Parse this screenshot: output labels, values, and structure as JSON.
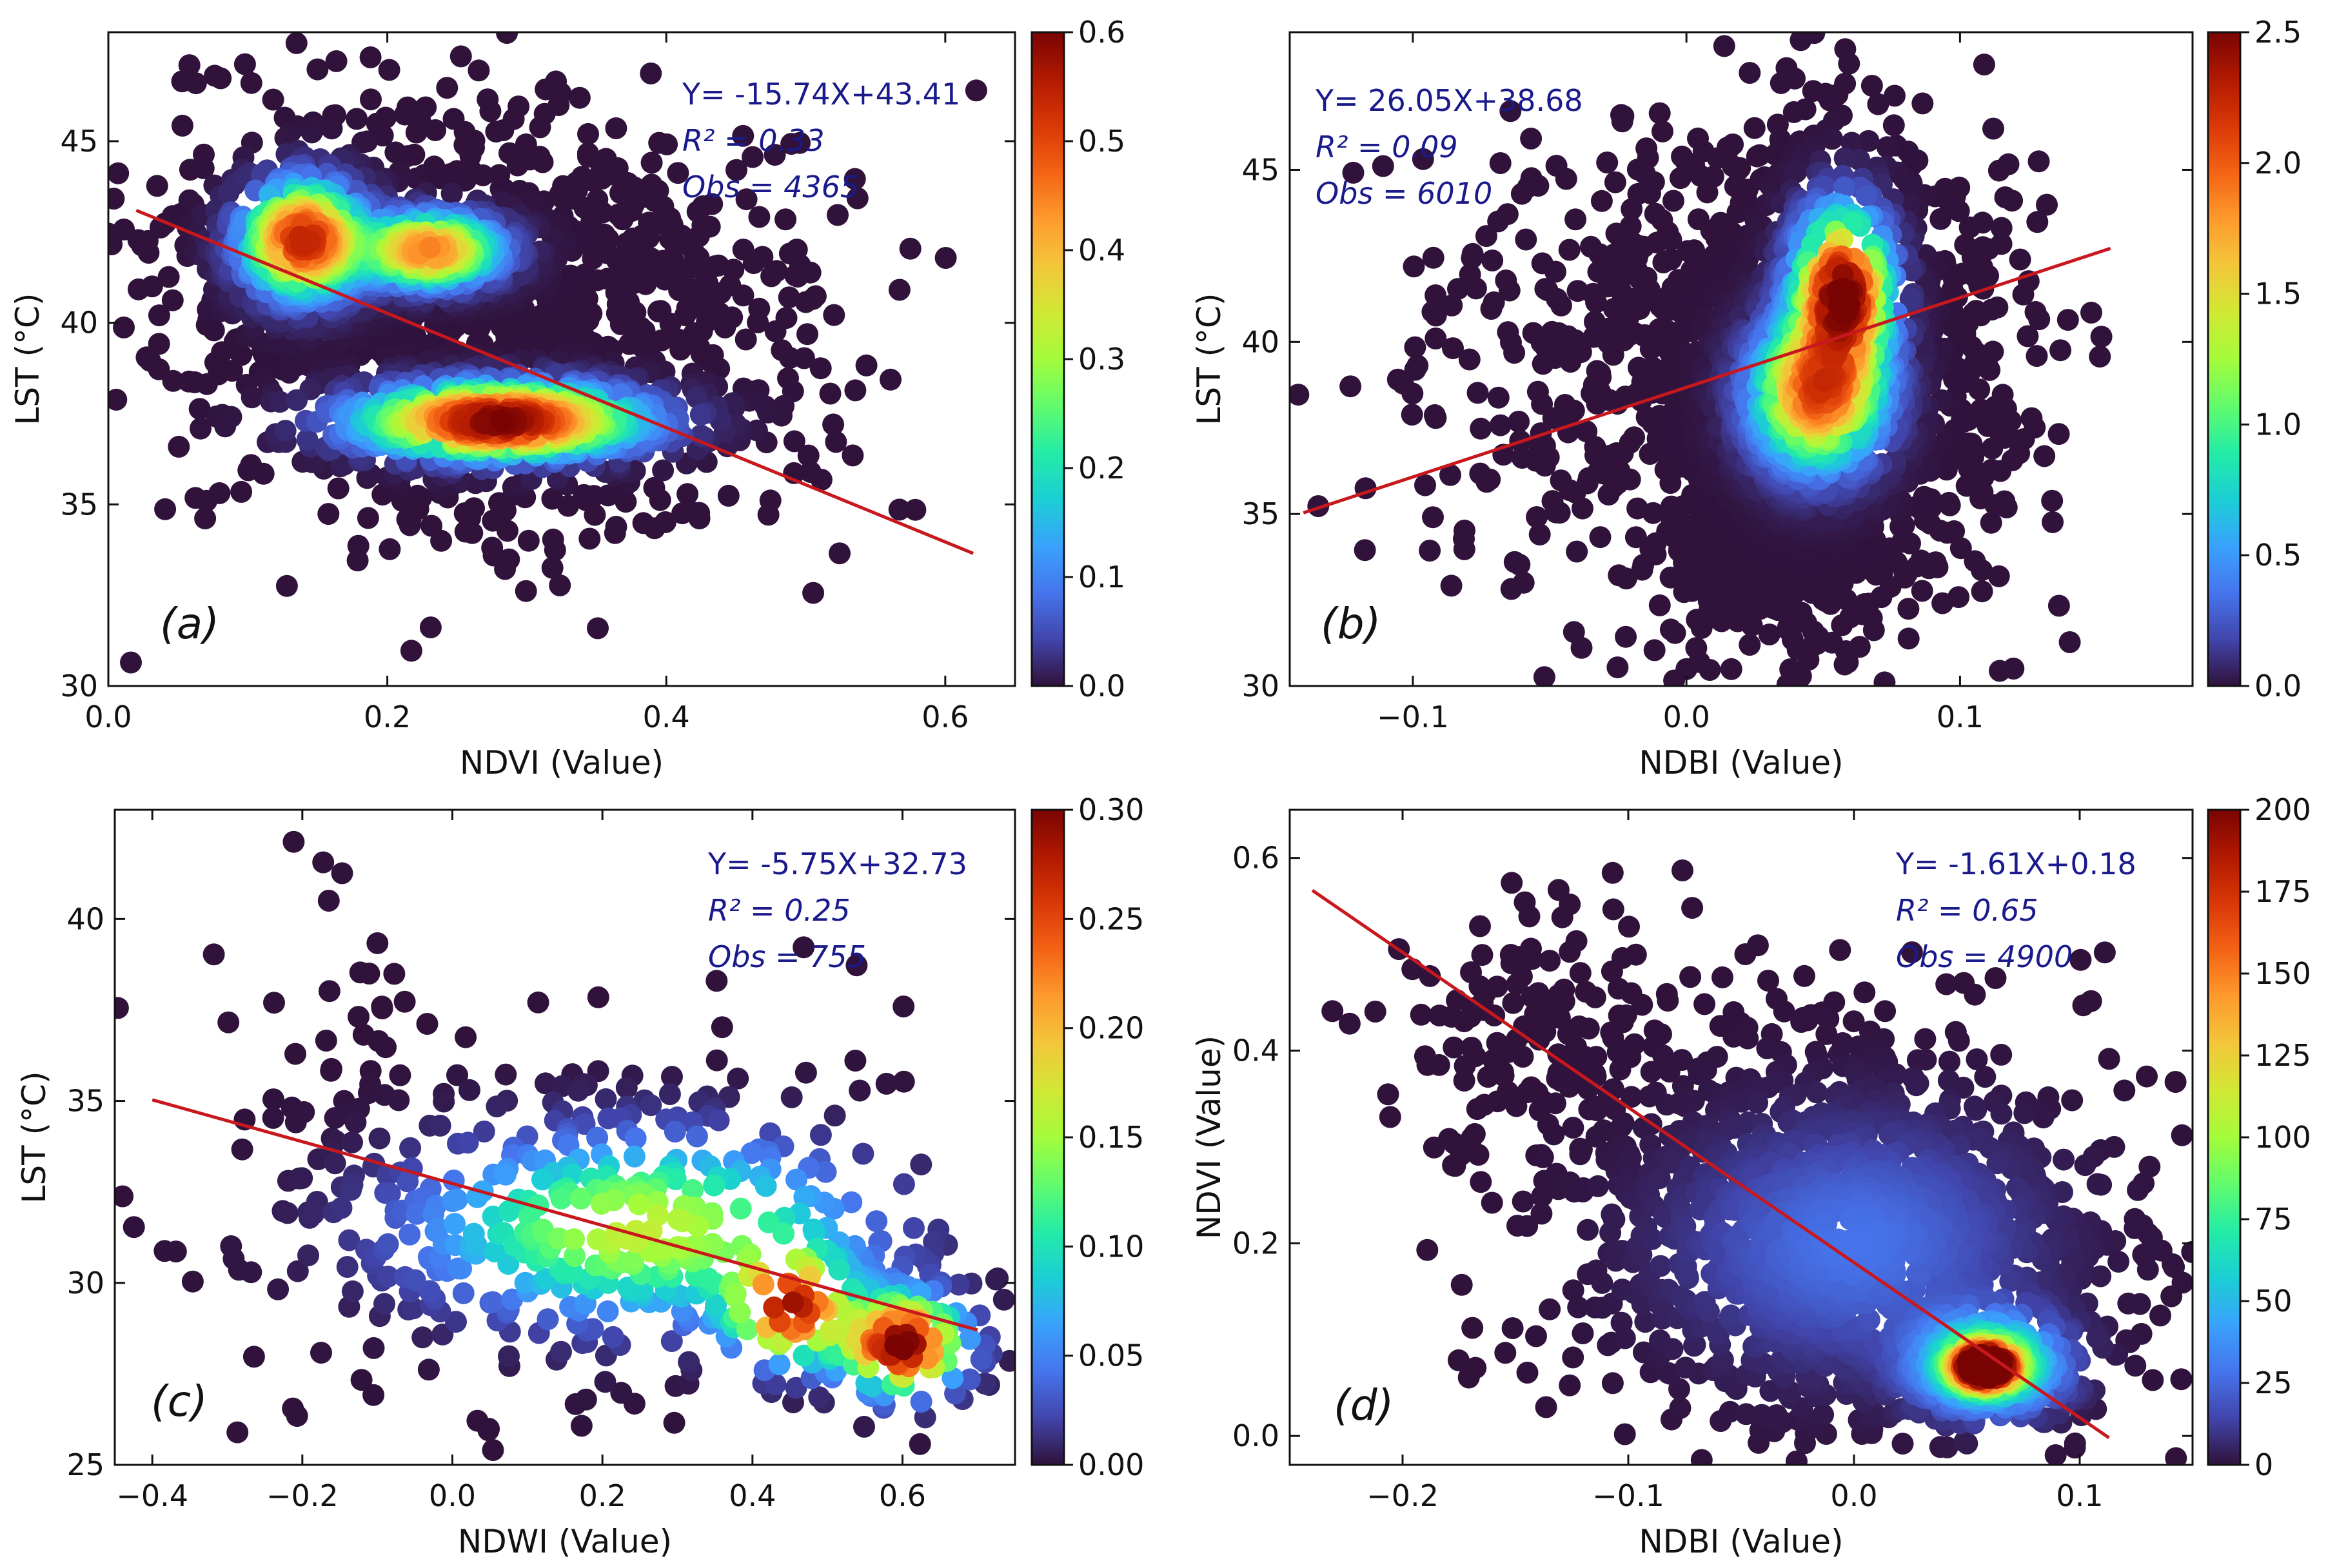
{
  "figure": {
    "colormap": [
      "#30123b",
      "#4145ab",
      "#4675ed",
      "#39a2fc",
      "#1bcfd4",
      "#24eca6",
      "#61fc6c",
      "#a4fc3b",
      "#d1e834",
      "#f3c63a",
      "#fe9b2d",
      "#f36315",
      "#d93806",
      "#b11901",
      "#7a0403"
    ],
    "regression_color": "#c8181e"
  },
  "chart_data": [
    {
      "type": "scatter",
      "panel": "(a)",
      "xlabel": "NDVI (Value)",
      "ylabel": "LST (°C)",
      "xlim": [
        0.0,
        0.65
      ],
      "ylim": [
        30,
        48
      ],
      "xticks": [
        0.0,
        0.2,
        0.4,
        0.6
      ],
      "xtick_labels": [
        "0.0",
        "0.2",
        "0.4",
        "0.6"
      ],
      "yticks": [
        30,
        35,
        40,
        45
      ],
      "ytick_labels": [
        "30",
        "35",
        "40",
        "45"
      ],
      "fit": {
        "slope": -15.74,
        "intercept": 43.41,
        "x_range": [
          0.02,
          0.62
        ]
      },
      "equation": "Y= -15.74X+43.41",
      "r2_label": "R² = 0.33",
      "obs_label": "Obs = 4365",
      "colorbar": {
        "min": 0.0,
        "max": 0.6,
        "ticks": [
          0.0,
          0.1,
          0.2,
          0.3,
          0.4,
          0.5,
          0.6
        ],
        "labels": [
          "0.0",
          "0.1",
          "0.2",
          "0.3",
          "0.4",
          "0.5",
          "0.6"
        ]
      },
      "clusters": [
        {
          "cx": 0.27,
          "cy": 40.0,
          "sx": 0.12,
          "sy": 3.0,
          "rot": -0.5,
          "n": 1200
        },
        {
          "cx": 0.14,
          "cy": 42.0,
          "sx": 0.035,
          "sy": 1.4,
          "n": 400
        },
        {
          "cx": 0.23,
          "cy": 42.0,
          "sx": 0.04,
          "sy": 0.8,
          "n": 300
        },
        {
          "cx": 0.29,
          "cy": 37.3,
          "sx": 0.07,
          "sy": 0.7,
          "n": 500
        }
      ],
      "density_peaks": [
        {
          "cx": 0.14,
          "cy": 42.3,
          "sx": 0.025,
          "sy": 0.9,
          "w": 0.9
        },
        {
          "cx": 0.23,
          "cy": 42.0,
          "sx": 0.03,
          "sy": 0.55,
          "w": 0.75
        },
        {
          "cx": 0.28,
          "cy": 37.3,
          "sx": 0.06,
          "sy": 0.55,
          "w": 1.0
        }
      ]
    },
    {
      "type": "scatter",
      "panel": "(b)",
      "xlabel": "NDBI (Value)",
      "ylabel": "LST (°C)",
      "xlim": [
        -0.145,
        0.185
      ],
      "ylim": [
        30,
        49
      ],
      "xticks": [
        -0.1,
        0.0,
        0.1
      ],
      "xtick_labels": [
        "−0.1",
        "0.0",
        "0.1"
      ],
      "yticks": [
        30,
        35,
        40,
        45
      ],
      "ytick_labels": [
        "30",
        "35",
        "40",
        "45"
      ],
      "fit": {
        "slope": 26.05,
        "intercept": 38.68,
        "x_range": [
          -0.14,
          0.155
        ]
      },
      "equation": "Y= 26.05X+38.68",
      "r2_label": "R² = 0.09",
      "obs_label": "Obs = 6010",
      "colorbar": {
        "min": 0.0,
        "max": 2.5,
        "ticks": [
          0.0,
          0.5,
          1.0,
          1.5,
          2.0,
          2.5
        ],
        "labels": [
          "0.0",
          "0.5",
          "1.0",
          "1.5",
          "2.0",
          "2.5"
        ]
      },
      "clusters": [
        {
          "cx": 0.045,
          "cy": 39.0,
          "sx": 0.035,
          "sy": 3.2,
          "n": 1500
        },
        {
          "cx": 0.03,
          "cy": 34.0,
          "sx": 0.02,
          "sy": 1.3,
          "n": 300
        },
        {
          "cx": 0.0,
          "cy": 40.0,
          "sx": 0.06,
          "sy": 3.5,
          "n": 400
        }
      ],
      "density_peaks": [
        {
          "cx": 0.057,
          "cy": 41.5,
          "sx": 0.01,
          "sy": 1.4,
          "w": 1.0
        },
        {
          "cx": 0.048,
          "cy": 38.5,
          "sx": 0.014,
          "sy": 1.3,
          "w": 0.8
        }
      ]
    },
    {
      "type": "scatter",
      "panel": "(c)",
      "xlabel": "NDWI (Value)",
      "ylabel": "LST (°C)",
      "xlim": [
        -0.45,
        0.75
      ],
      "ylim": [
        25,
        43
      ],
      "xticks": [
        -0.4,
        -0.2,
        0.0,
        0.2,
        0.4,
        0.6
      ],
      "xtick_labels": [
        "−0.4",
        "−0.2",
        "0.0",
        "0.2",
        "0.4",
        "0.6"
      ],
      "yticks": [
        25,
        30,
        35,
        40
      ],
      "ytick_labels": [
        "25",
        "30",
        "35",
        "40"
      ],
      "fit": {
        "slope": -5.75,
        "intercept": 32.73,
        "x_range": [
          -0.4,
          0.7
        ]
      },
      "equation": "Y= -5.75X+32.73",
      "r2_label": "R² = 0.25",
      "obs_label": "Obs = 755",
      "colorbar": {
        "min": 0.0,
        "max": 0.3,
        "ticks": [
          0.0,
          0.05,
          0.1,
          0.15,
          0.2,
          0.25,
          0.3
        ],
        "labels": [
          "0.00",
          "0.05",
          "0.10",
          "0.15",
          "0.20",
          "0.25",
          "0.30"
        ]
      },
      "clusters": [
        {
          "cx": 0.2,
          "cy": 31.5,
          "sx": 0.2,
          "sy": 2.8,
          "n": 450
        },
        {
          "cx": 0.57,
          "cy": 29.0,
          "sx": 0.08,
          "sy": 1.2,
          "n": 200
        },
        {
          "cx": -0.15,
          "cy": 35.0,
          "sx": 0.08,
          "sy": 3.5,
          "n": 60
        }
      ],
      "density_peaks": [
        {
          "cx": 0.6,
          "cy": 28.3,
          "sx": 0.05,
          "sy": 0.8,
          "w": 1.0
        },
        {
          "cx": 0.45,
          "cy": 29.3,
          "sx": 0.05,
          "sy": 0.9,
          "w": 0.85
        },
        {
          "cx": 0.25,
          "cy": 31.5,
          "sx": 0.18,
          "sy": 1.5,
          "w": 0.55
        }
      ]
    },
    {
      "type": "scatter",
      "panel": "(d)",
      "xlabel": "NDBI (Value)",
      "ylabel": "NDVI (Value)",
      "xlim": [
        -0.25,
        0.15
      ],
      "ylim": [
        -0.03,
        0.65
      ],
      "xticks": [
        -0.2,
        -0.1,
        0.0,
        0.1
      ],
      "xtick_labels": [
        "−0.2",
        "−0.1",
        "0.0",
        "0.1"
      ],
      "yticks": [
        0.0,
        0.2,
        0.4,
        0.6
      ],
      "ytick_labels": [
        "0.0",
        "0.2",
        "0.4",
        "0.6"
      ],
      "fit": {
        "slope": -1.61,
        "intercept": 0.18,
        "x_range": [
          -0.24,
          0.113
        ]
      },
      "equation": "Y= -1.61X+0.18",
      "r2_label": "R² = 0.65",
      "obs_label": "Obs = 4900",
      "colorbar": {
        "min": 0,
        "max": 200,
        "ticks": [
          0,
          25,
          50,
          75,
          100,
          125,
          150,
          175,
          200
        ],
        "labels": [
          "0",
          "25",
          "50",
          "75",
          "100",
          "125",
          "150",
          "175",
          "200"
        ]
      },
      "clusters": [
        {
          "cx": 0.0,
          "cy": 0.2,
          "sx": 0.06,
          "sy": 0.1,
          "rot": -0.9,
          "n": 1500
        },
        {
          "cx": 0.06,
          "cy": 0.07,
          "sx": 0.02,
          "sy": 0.025,
          "n": 500
        },
        {
          "cx": -0.12,
          "cy": 0.4,
          "sx": 0.05,
          "sy": 0.08,
          "n": 200
        }
      ],
      "density_peaks": [
        {
          "cx": 0.058,
          "cy": 0.072,
          "sx": 0.008,
          "sy": 0.012,
          "w": 1.0
        },
        {
          "cx": 0.06,
          "cy": 0.075,
          "sx": 0.02,
          "sy": 0.03,
          "w": 0.45
        },
        {
          "cx": 0.0,
          "cy": 0.2,
          "sx": 0.05,
          "sy": 0.08,
          "w": 0.14
        }
      ]
    }
  ]
}
